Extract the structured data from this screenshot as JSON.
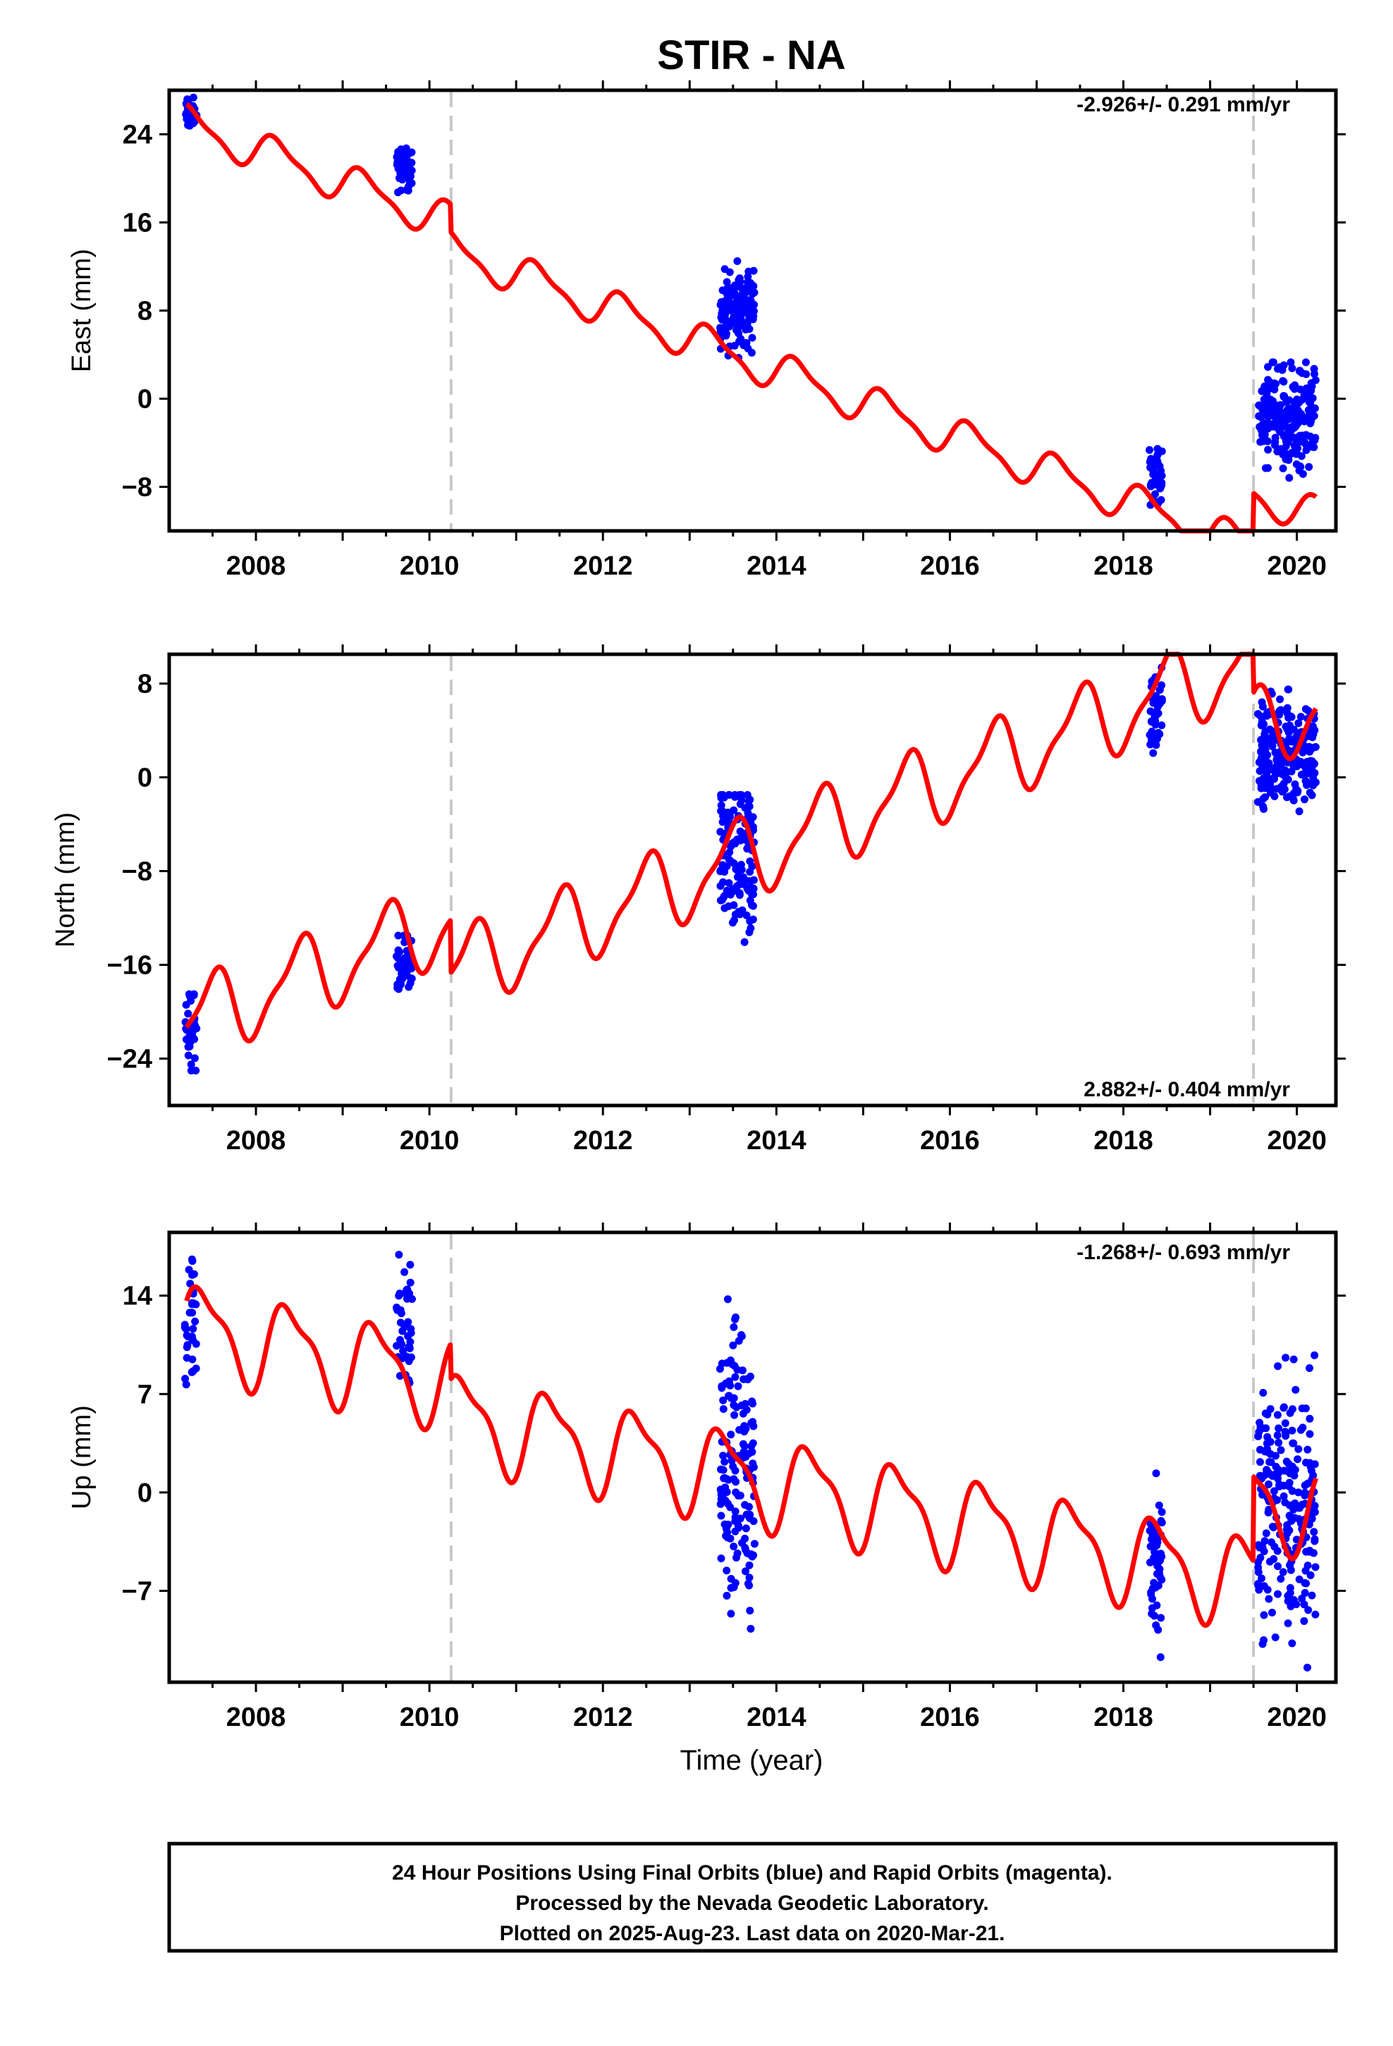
{
  "chart_data": {
    "type": "scatter",
    "title": "STIR - NA",
    "xlabel": "Time (year)",
    "xlim": [
      2007.0,
      2020.45
    ],
    "xticks": [
      2008,
      2010,
      2012,
      2014,
      2016,
      2018,
      2020
    ],
    "steps": [
      2010.25,
      2019.5
    ],
    "colors": {
      "points": "#0000ff",
      "model": "#ff0000",
      "steps": "#c8c8c8"
    },
    "panels": [
      {
        "name": "east",
        "ylabel": "East (mm)",
        "ylim": [
          -12,
          28
        ],
        "yticks": [
          -8,
          0,
          8,
          16,
          24
        ],
        "rate": "-2.926+/- 0.291 mm/yr",
        "rate_position": "top-right",
        "model": {
          "intercept": 25.5,
          "slope": -2.926,
          "amp1": 1.6,
          "phase1": 0.0,
          "amp2": 0.5,
          "phase2": 0.5,
          "step_offsets": [
            -2.5,
            5.0
          ]
        },
        "segments": [
          {
            "t0": 2007.18,
            "t1": 2007.32,
            "n": 40,
            "ymin": 24.0,
            "ymax": 27.6,
            "mean": 25.8
          },
          {
            "t0": 2009.62,
            "t1": 2009.8,
            "n": 50,
            "ymin": 18.0,
            "ymax": 22.8,
            "mean": 20.8
          },
          {
            "t0": 2013.35,
            "t1": 2013.75,
            "n": 140,
            "ymin": 3.5,
            "ymax": 12.8,
            "mean": 8.2
          },
          {
            "t0": 2018.3,
            "t1": 2018.45,
            "n": 45,
            "ymin": -11.5,
            "ymax": -4.0,
            "mean": -7.0
          },
          {
            "t0": 2019.55,
            "t1": 2020.22,
            "n": 220,
            "ymin": -8.2,
            "ymax": 3.3,
            "mean": -1.5
          }
        ]
      },
      {
        "name": "north",
        "ylabel": "North (mm)",
        "ylim": [
          -28,
          10.5
        ],
        "yticks": [
          -24,
          -16,
          -8,
          0,
          8
        ],
        "rate": "2.882+/- 0.404 mm/yr",
        "rate_position": "bottom-right",
        "model": {
          "intercept": -21.5,
          "slope": 2.882,
          "amp1": 3.2,
          "phase1": 0.25,
          "amp2": 1.0,
          "phase2": 0.0,
          "step_offsets": [
            -4.5,
            -6.0
          ]
        },
        "segments": [
          {
            "t0": 2007.18,
            "t1": 2007.32,
            "n": 35,
            "ymin": -27.0,
            "ymax": -18.5,
            "mean": -21.5
          },
          {
            "t0": 2009.62,
            "t1": 2009.8,
            "n": 40,
            "ymin": -20.5,
            "ymax": -13.5,
            "mean": -16.0
          },
          {
            "t0": 2013.35,
            "t1": 2013.75,
            "n": 140,
            "ymin": -20.0,
            "ymax": -1.5,
            "mean": -7.5
          },
          {
            "t0": 2018.3,
            "t1": 2018.45,
            "n": 45,
            "ymin": 0.0,
            "ymax": 10.0,
            "mean": 5.5
          },
          {
            "t0": 2019.55,
            "t1": 2020.22,
            "n": 220,
            "ymin": -5.0,
            "ymax": 7.5,
            "mean": 2.0
          }
        ]
      },
      {
        "name": "up",
        "ylabel": "Up (mm)",
        "ylim": [
          -13.5,
          18.5
        ],
        "yticks": [
          -7,
          0,
          7,
          14
        ],
        "rate": "-1.268+/- 0.693 mm/yr",
        "rate_position": "top-right",
        "model": {
          "intercept": 12.0,
          "slope": -1.268,
          "amp1": 3.0,
          "phase1": 0.15,
          "amp2": 1.0,
          "phase2": 0.6,
          "step_offsets": [
            -2.5,
            6.0
          ]
        },
        "segments": [
          {
            "t0": 2007.18,
            "t1": 2007.32,
            "n": 35,
            "ymin": 7.5,
            "ymax": 18.0,
            "mean": 12.0
          },
          {
            "t0": 2009.62,
            "t1": 2009.8,
            "n": 45,
            "ymin": 6.0,
            "ymax": 18.0,
            "mean": 12.0
          },
          {
            "t0": 2013.35,
            "t1": 2013.75,
            "n": 160,
            "ymin": -13.0,
            "ymax": 15.5,
            "mean": 2.0
          },
          {
            "t0": 2018.3,
            "t1": 2018.45,
            "n": 50,
            "ymin": -13.0,
            "ymax": 2.0,
            "mean": -5.0
          },
          {
            "t0": 2019.55,
            "t1": 2020.22,
            "n": 230,
            "ymin": -13.0,
            "ymax": 10.0,
            "mean": -1.0
          }
        ]
      }
    ]
  },
  "caption": {
    "line1": "24 Hour Positions Using Final Orbits (blue) and Rapid Orbits (magenta).",
    "line2": "Processed by the Nevada Geodetic Laboratory.",
    "line3": "Plotted on 2025-Aug-23. Last data on 2020-Mar-21."
  }
}
